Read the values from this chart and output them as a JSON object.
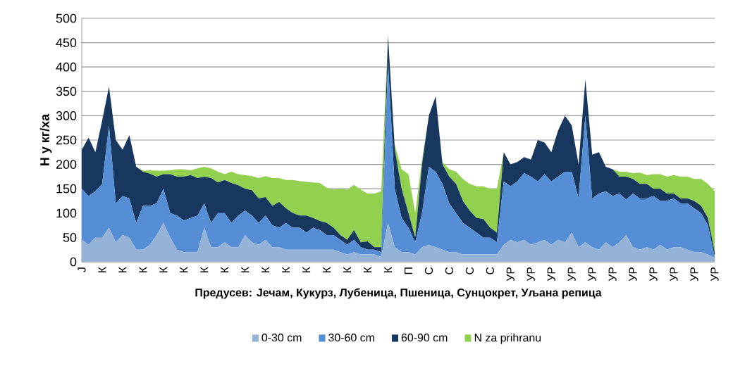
{
  "chart_data": {
    "type": "area",
    "stacked": true,
    "xlabel": "Предусев: Јечам, Кукурз, Лубеница, Пшеница, Сунцокрет, Уљана репица",
    "ylabel": "Н у кг/ха",
    "categories": [
      "Ј",
      null,
      null,
      "К",
      null,
      null,
      "К",
      null,
      null,
      "К",
      null,
      null,
      "К",
      null,
      null,
      "К",
      null,
      null,
      "К",
      null,
      null,
      "К",
      null,
      null,
      "К",
      null,
      null,
      "К",
      null,
      null,
      "К",
      null,
      null,
      "К",
      null,
      null,
      "К",
      null,
      null,
      "К",
      null,
      null,
      "К",
      null,
      null,
      "К",
      null,
      null,
      "П",
      null,
      null,
      "С",
      null,
      null,
      "С",
      null,
      null,
      "С",
      null,
      null,
      "С",
      null,
      null,
      "УР",
      null,
      null,
      "УР",
      null,
      null,
      "УР",
      null,
      null,
      "УР",
      null,
      null,
      "УР",
      null,
      null,
      "УР",
      null,
      null,
      "УР",
      null,
      null,
      "УР",
      null,
      null,
      "УР",
      null,
      null,
      "УР",
      null,
      null,
      "УР"
    ],
    "series": [
      {
        "name": "0-30 cm",
        "color": "#95b3d7",
        "values": [
          45,
          35,
          50,
          50,
          70,
          40,
          55,
          50,
          25,
          25,
          35,
          55,
          80,
          50,
          25,
          20,
          20,
          20,
          70,
          30,
          30,
          40,
          30,
          30,
          55,
          40,
          35,
          45,
          30,
          30,
          25,
          25,
          25,
          25,
          25,
          25,
          25,
          25,
          20,
          15,
          20,
          15,
          15,
          15,
          10,
          80,
          30,
          20,
          20,
          15,
          30,
          35,
          30,
          25,
          20,
          20,
          15,
          15,
          15,
          15,
          15,
          15,
          35,
          45,
          40,
          45,
          35,
          40,
          45,
          35,
          45,
          40,
          60,
          30,
          40,
          30,
          25,
          40,
          30,
          40,
          55,
          30,
          25,
          30,
          25,
          35,
          25,
          30,
          30,
          25,
          20,
          20,
          15,
          8
        ]
      },
      {
        "name": "30-60 cm",
        "color": "#558ed5",
        "values": [
          105,
          100,
          95,
          110,
          210,
          80,
          80,
          80,
          55,
          90,
          80,
          65,
          70,
          50,
          70,
          65,
          70,
          75,
          50,
          50,
          70,
          60,
          50,
          65,
          50,
          55,
          45,
          50,
          45,
          40,
          55,
          45,
          45,
          35,
          45,
          40,
          30,
          30,
          25,
          20,
          25,
          15,
          10,
          10,
          10,
          330,
          120,
          70,
          50,
          25,
          70,
          160,
          155,
          135,
          100,
          80,
          65,
          55,
          45,
          35,
          35,
          25,
          130,
          110,
          125,
          137,
          140,
          125,
          135,
          130,
          130,
          145,
          125,
          100,
          260,
          100,
          115,
          105,
          105,
          100,
          73,
          110,
          105,
          100,
          110,
          90,
          100,
          100,
          90,
          95,
          90,
          80,
          60,
          2
        ]
      },
      {
        "name": "60-90 cm",
        "color": "#17375e",
        "values": [
          80,
          120,
          80,
          130,
          80,
          130,
          95,
          130,
          115,
          70,
          66,
          55,
          30,
          80,
          80,
          90,
          88,
          77,
          55,
          92,
          63,
          68,
          82,
          62,
          45,
          52,
          50,
          38,
          40,
          53,
          30,
          30,
          25,
          35,
          20,
          19,
          25,
          15,
          10,
          10,
          20,
          10,
          17,
          5,
          10,
          55,
          80,
          60,
          30,
          10,
          100,
          105,
          155,
          40,
          55,
          60,
          45,
          35,
          30,
          38,
          20,
          20,
          60,
          45,
          40,
          33,
          35,
          85,
          65,
          60,
          95,
          115,
          95,
          70,
          75,
          90,
          85,
          50,
          55,
          35,
          47,
          30,
          30,
          30,
          15,
          25,
          15,
          10,
          10,
          10,
          15,
          15,
          15,
          10
        ]
      },
      {
        "name": "N za prihranu",
        "color": "#92d050",
        "values": [
          0,
          0,
          0,
          0,
          0,
          0,
          0,
          0,
          0,
          2,
          7,
          12,
          7,
          8,
          15,
          15,
          10,
          20,
          20,
          20,
          22,
          12,
          23,
          23,
          28,
          29,
          42,
          43,
          57,
          49,
          58,
          68,
          71,
          69,
          73,
          78,
          72,
          78,
          95,
          103,
          93,
          108,
          98,
          110,
          115,
          0,
          10,
          40,
          80,
          50,
          10,
          0,
          0,
          5,
          15,
          25,
          45,
          55,
          65,
          67,
          80,
          90,
          0,
          0,
          0,
          0,
          0,
          0,
          0,
          0,
          0,
          0,
          0,
          0,
          0,
          0,
          0,
          0,
          0,
          10,
          10,
          12,
          23,
          18,
          30,
          30,
          35,
          38,
          45,
          45,
          45,
          55,
          70,
          125
        ]
      }
    ],
    "ylim": [
      0,
      500
    ],
    "yticks": [
      0,
      50,
      100,
      150,
      200,
      250,
      300,
      350,
      400,
      450,
      500
    ],
    "grid": "y",
    "legend": "bottom"
  }
}
